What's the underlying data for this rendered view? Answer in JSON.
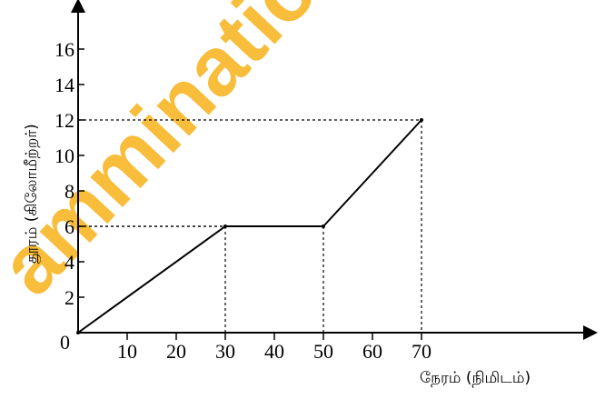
{
  "watermark": "amminations",
  "chart_data": {
    "type": "line",
    "xlabel": "நேரம் (நிமிடம்)",
    "ylabel": "தூரம் (கிலோமீற்றர்)",
    "xlim": [
      0,
      70
    ],
    "ylim": [
      0,
      17
    ],
    "x_ticks": [
      "10",
      "20",
      "30",
      "40",
      "50",
      "60",
      "70"
    ],
    "y_ticks": [
      "2",
      "4",
      "6",
      "8",
      "10",
      "12",
      "14",
      "16"
    ],
    "origin_label": "0",
    "grid": false,
    "series": [
      {
        "x": [
          0,
          30,
          50,
          70
        ],
        "y": [
          0,
          6,
          6,
          12
        ]
      }
    ],
    "guide_lines": [
      {
        "x": 30,
        "y": 6
      },
      {
        "x": 50,
        "y": 6
      },
      {
        "x": 70,
        "y": 12
      }
    ]
  }
}
